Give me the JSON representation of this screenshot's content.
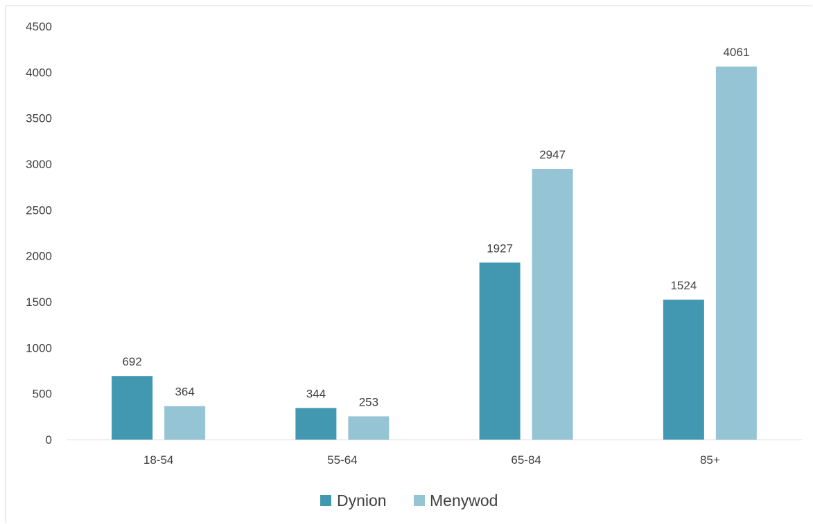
{
  "chart_data": {
    "type": "bar",
    "title": "",
    "xlabel": "",
    "ylabel": "",
    "categories": [
      "18-54",
      "55-64",
      "65-84",
      "85+"
    ],
    "series": [
      {
        "name": "Dynion",
        "color": "#4298B0",
        "values": [
          692,
          344,
          1927,
          1524
        ]
      },
      {
        "name": "Menywod",
        "color": "#95C4D4",
        "values": [
          364,
          253,
          2947,
          4061
        ]
      }
    ],
    "ylim": [
      0,
      4500
    ],
    "yticks": [
      0,
      500,
      1000,
      1500,
      2000,
      2500,
      3000,
      3500,
      4000,
      4500
    ],
    "grid": false,
    "legend": "bottom",
    "data_labels": true
  }
}
